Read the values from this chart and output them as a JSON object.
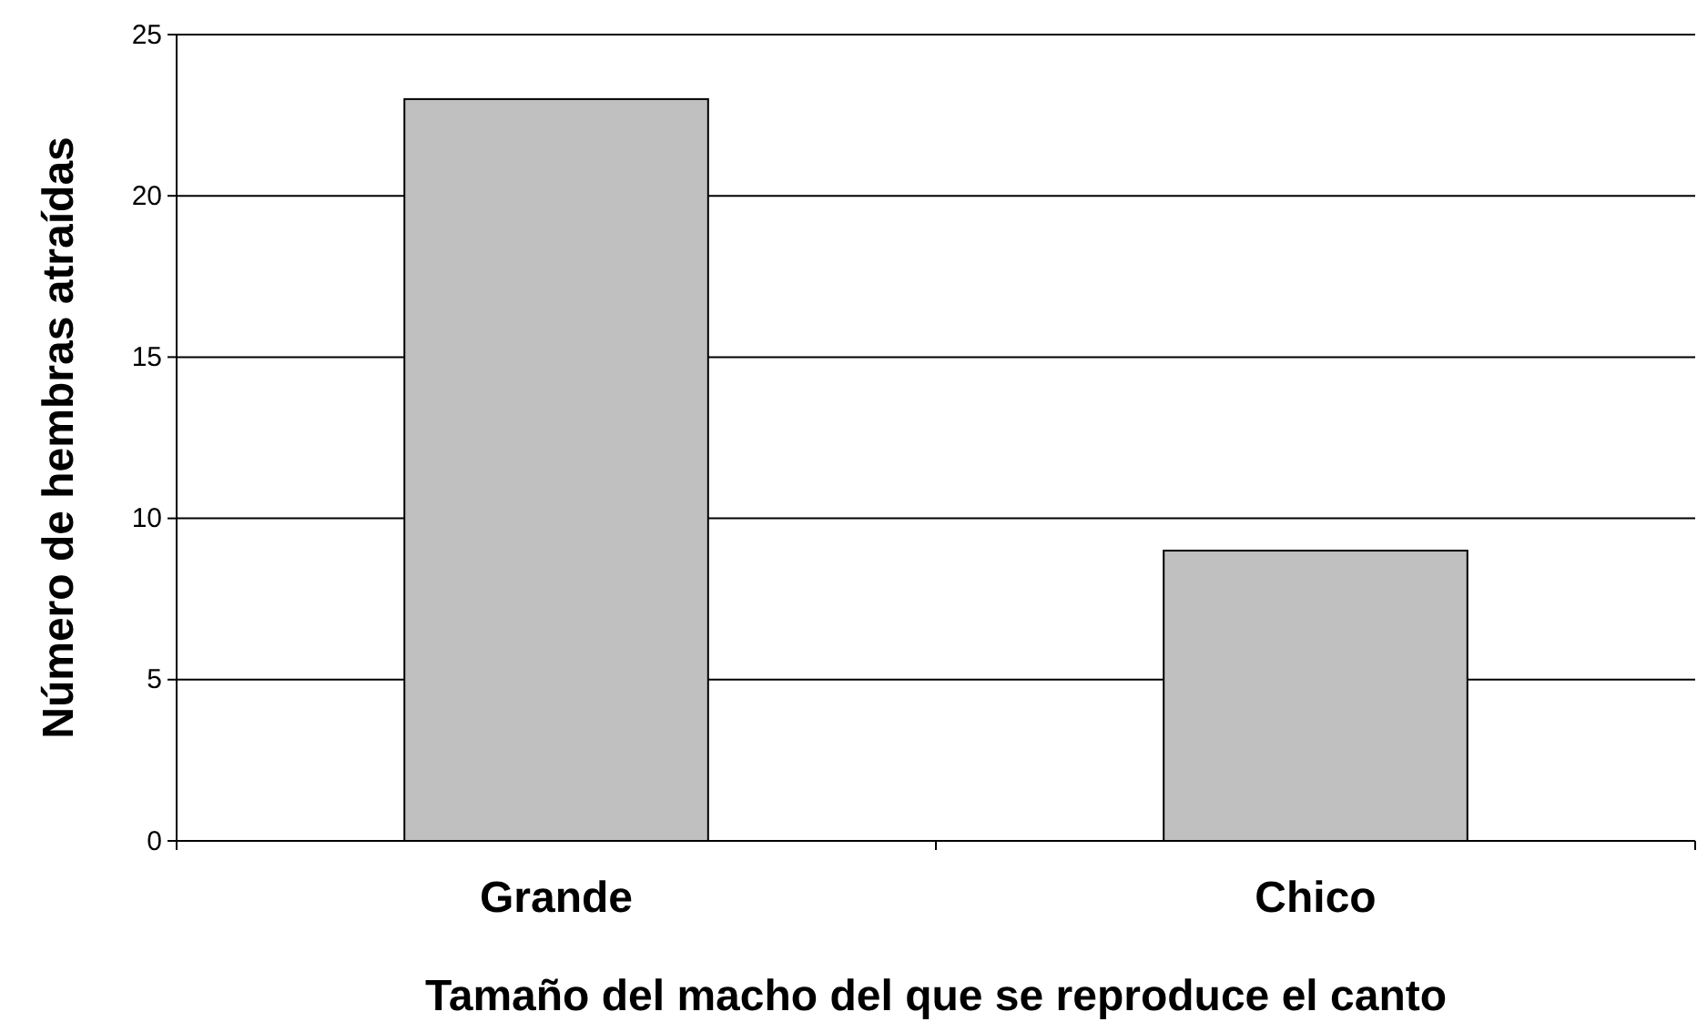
{
  "chart_data": {
    "type": "bar",
    "xlabel": "Tamaño del macho del que se reproduce el canto",
    "ylabel": "Número de hembras atraídas",
    "categories": [
      "Grande",
      "Chico"
    ],
    "values": [
      23,
      9
    ],
    "color": "#c0c0c0",
    "ylim": [
      0,
      25
    ],
    "yticks": [
      0,
      5,
      10,
      15,
      20,
      25
    ],
    "grid": "y"
  }
}
